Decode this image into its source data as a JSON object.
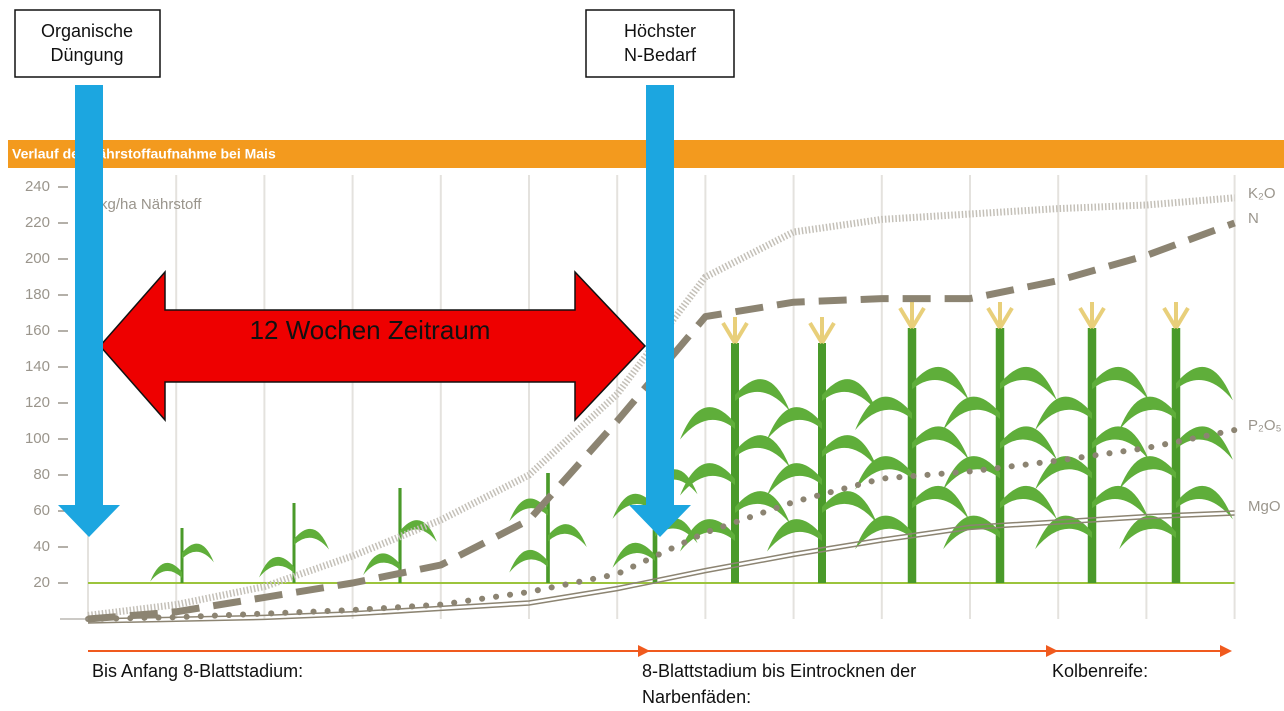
{
  "chart_data": {
    "type": "line",
    "title": "Verlauf der Nährstoffaufnahme bei Mais",
    "y_label": "kg/ha Nährstoff",
    "categories": [
      null,
      null,
      null,
      null,
      null,
      null,
      null,
      null,
      null,
      null,
      null,
      null,
      null,
      null
    ],
    "ylim": [
      0,
      240
    ],
    "yticks": [
      20,
      40,
      60,
      80,
      100,
      120,
      140,
      160,
      180,
      200,
      220,
      240
    ],
    "hline": 20,
    "series": [
      {
        "name": "K₂O",
        "color": "#c4c0b8",
        "style": "hatched",
        "values": [
          2,
          8,
          18,
          35,
          55,
          80,
          125,
          190,
          215,
          222,
          225,
          228,
          230,
          234
        ]
      },
      {
        "name": "N",
        "color": "#8c8472",
        "style": "dashed",
        "values": [
          0,
          4,
          12,
          20,
          30,
          55,
          110,
          168,
          176,
          178,
          178,
          188,
          202,
          220
        ]
      },
      {
        "name": "P₂O₅",
        "color": "#8c8472",
        "style": "dotted",
        "values": [
          0,
          1,
          3,
          5,
          8,
          15,
          25,
          48,
          65,
          78,
          82,
          88,
          95,
          105
        ]
      },
      {
        "name": "MgO",
        "color": "#8c8472",
        "style": "double",
        "values": [
          0,
          1,
          2,
          4,
          7,
          10,
          18,
          28,
          37,
          45,
          52,
          55,
          58,
          60
        ]
      }
    ],
    "annotations": {
      "organic": [
        "Organische",
        "Düngung"
      ],
      "peak": [
        "Höchster",
        "N-Bedarf"
      ],
      "period": "12 Wochen Zeitraum",
      "phases": [
        [
          "Bis Anfang 8-Blattstadium:"
        ],
        [
          "8-Blattstadium bis Eintrocknen der",
          "Narbenfäden:"
        ],
        [
          "Kolbenreife:"
        ]
      ]
    }
  }
}
